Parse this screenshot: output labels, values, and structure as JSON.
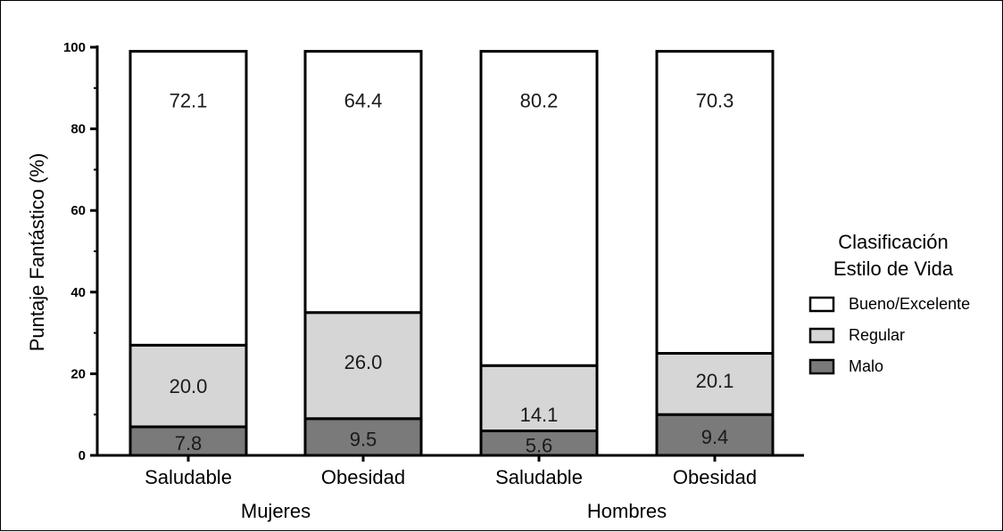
{
  "chart_data": {
    "type": "bar",
    "stacked": true,
    "ylabel": "Puntaje Fantástico (%)",
    "ylim": [
      0,
      100
    ],
    "yticks": [
      "0",
      "20",
      "40",
      "60",
      "80",
      "100"
    ],
    "categories": [
      "Saludable",
      "Obesidad",
      "Saludable",
      "Obesidad"
    ],
    "groups": [
      {
        "label": "Mujeres",
        "categories": [
          0,
          1
        ]
      },
      {
        "label": "Hombres",
        "categories": [
          2,
          3
        ]
      }
    ],
    "series": [
      {
        "name": "Malo",
        "color": "#7a7a7a",
        "values": [
          7.8,
          9.5,
          5.6,
          9.4
        ],
        "labels": [
          "7.8",
          "9.5",
          "5.6",
          "9.4"
        ],
        "tops": [
          7,
          9,
          6,
          10
        ]
      },
      {
        "name": "Regular",
        "color": "#d6d6d6",
        "values": [
          20.0,
          26.0,
          14.1,
          20.1
        ],
        "labels": [
          "20.0",
          "26.0",
          "14.1",
          "20.1"
        ],
        "tops": [
          27,
          35,
          22,
          25
        ]
      },
      {
        "name": "Bueno/Excelente",
        "color": "#ffffff",
        "values": [
          72.1,
          64.4,
          80.2,
          70.3
        ],
        "labels": [
          "72.1",
          "64.4",
          "80.2",
          "70.3"
        ],
        "tops": [
          99,
          99,
          99,
          99
        ]
      }
    ],
    "legend": {
      "title_line1": "Clasificación",
      "title_line2": "Estilo de Vida",
      "placement": "right",
      "order": [
        "Bueno/Excelente",
        "Regular",
        "Malo"
      ]
    },
    "grid": false
  }
}
